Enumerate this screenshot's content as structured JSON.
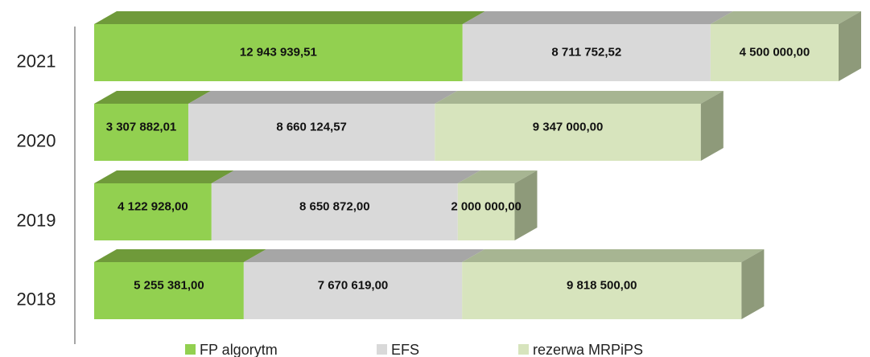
{
  "chart_data": {
    "type": "bar3d_stacked_horizontal",
    "categories": [
      "2021",
      "2020",
      "2019",
      "2018"
    ],
    "series": [
      {
        "name": "FP algorytm",
        "color": "#92d050",
        "top": "#6f9a3a",
        "values": [
          12943939.51,
          3307882.01,
          4122928,
          5255381
        ],
        "value_labels": [
          "12 943 939,51",
          "3 307 882,01",
          "4 122 928,00",
          "5 255 381,00"
        ]
      },
      {
        "name": "EFS",
        "color": "#d9d9d9",
        "top": "#a6a6a6",
        "values": [
          8711752.52,
          8660124.57,
          8650872,
          7670619
        ],
        "value_labels": [
          "8 711 752,52",
          "8 660 124,57",
          "8 650 872,00",
          "7 670 619,00"
        ]
      },
      {
        "name": "rezerwa MRPiPS",
        "color": "#d7e4bd",
        "top": "#a7b592",
        "side": "#8e9a7a",
        "values": [
          4500000,
          9347000,
          2000000,
          9818500
        ],
        "value_labels": [
          "4 500 000,00",
          "9 347 000,00",
          "2 000 000,00",
          "9 818 500,00"
        ]
      }
    ],
    "legend": "bottom"
  }
}
